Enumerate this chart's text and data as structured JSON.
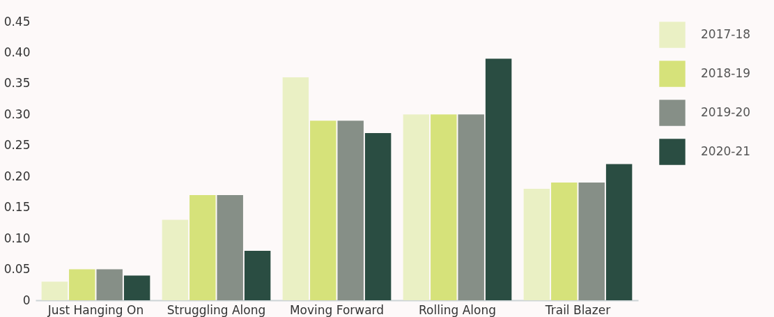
{
  "chart_data": {
    "type": "bar",
    "categories": [
      "Just Hanging On",
      "Struggling Along",
      "Moving Forward",
      "Rolling Along",
      "Trail Blazer"
    ],
    "series": [
      {
        "name": "2017-18",
        "color": "#eaf0c4",
        "values": [
          0.03,
          0.13,
          0.36,
          0.3,
          0.18
        ]
      },
      {
        "name": "2018-19",
        "color": "#d6e27a",
        "values": [
          0.05,
          0.17,
          0.29,
          0.3,
          0.19
        ]
      },
      {
        "name": "2019-20",
        "color": "#868f87",
        "values": [
          0.05,
          0.17,
          0.29,
          0.3,
          0.19
        ]
      },
      {
        "name": "2020-21",
        "color": "#2a4d42",
        "values": [
          0.04,
          0.08,
          0.27,
          0.39,
          0.22
        ]
      }
    ],
    "ylim": [
      0,
      0.45
    ],
    "yticks": [
      0,
      {
        "value": 0.05,
        "label": "0.05"
      },
      {
        "value": 0.1,
        "label": "0.10"
      },
      {
        "value": 0.15,
        "label": "0.15"
      },
      {
        "value": 0.2,
        "label": "0.20"
      },
      {
        "value": 0.25,
        "label": "0.25"
      },
      {
        "value": 0.3,
        "label": "0.30"
      },
      {
        "value": 0.35,
        "label": "0.35"
      },
      {
        "value": 0.4,
        "label": "0.40"
      },
      {
        "value": 0.45,
        "label": "0.45"
      }
    ],
    "grid": false,
    "legend": "top right"
  }
}
